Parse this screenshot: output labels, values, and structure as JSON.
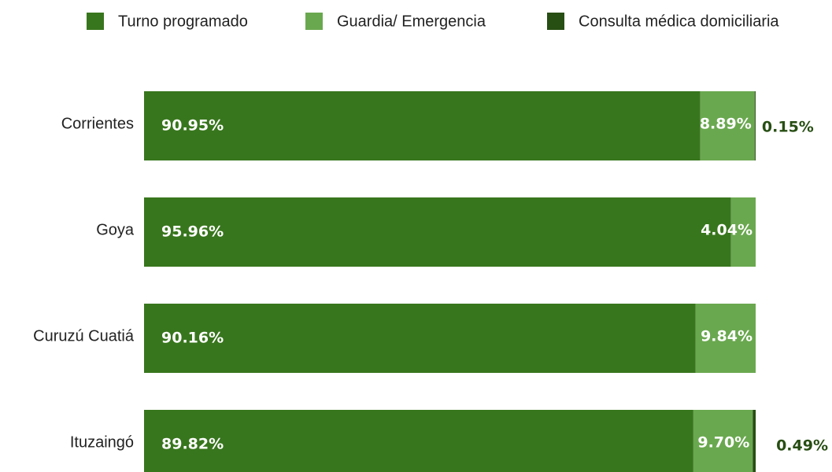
{
  "chart_data": {
    "type": "bar",
    "orientation": "horizontal",
    "stacked": true,
    "categories": [
      "Corrientes",
      "Goya",
      "Curuzú Cuatiá",
      "Ituzaingó"
    ],
    "xlim": [
      0,
      100
    ],
    "series": [
      {
        "name": "Turno programado",
        "color": "#38761d",
        "values": [
          90.95,
          95.96,
          90.16,
          89.82
        ],
        "value_labels": [
          "90.95%",
          "95.96%",
          "90.16%",
          "89.82%"
        ]
      },
      {
        "name": "Guardia/ Emergencia",
        "color": "#6aa84f",
        "values": [
          8.89,
          4.04,
          9.84,
          9.7
        ],
        "value_labels": [
          "8.89%",
          "4.04%",
          "9.84%",
          "9.70%"
        ]
      },
      {
        "name": "Consulta médica domiciliaria",
        "color": "#274e13",
        "values": [
          0.15,
          null,
          null,
          0.49
        ],
        "value_labels": [
          "0.15%",
          null,
          null,
          "0.49%"
        ]
      }
    ],
    "legend": "top"
  }
}
